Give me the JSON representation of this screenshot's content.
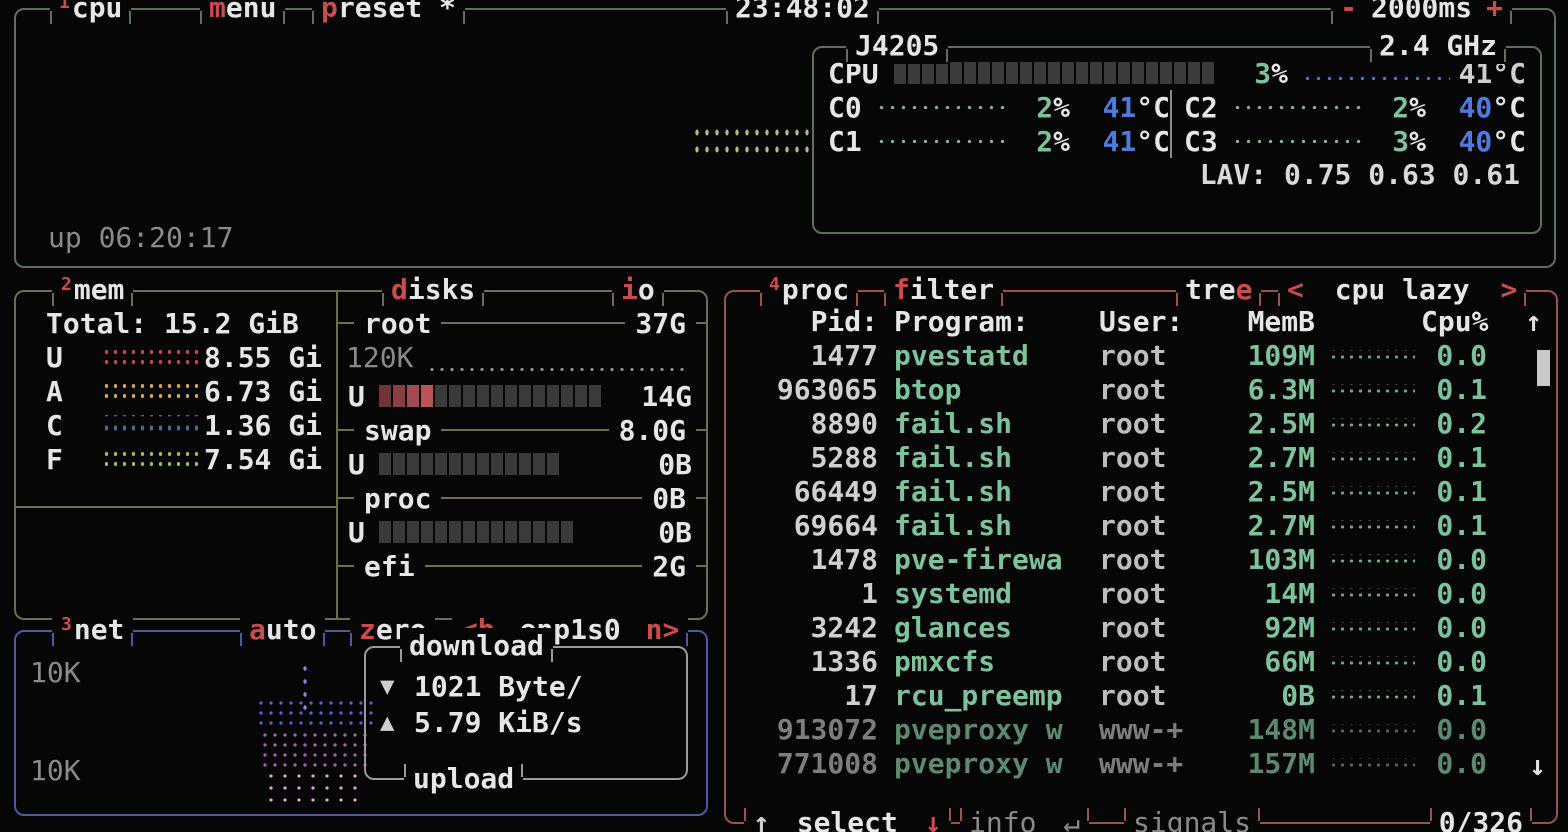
{
  "cpu_box": {
    "num": "1",
    "title": "cpu",
    "menu_hot": "m",
    "menu_rest": "enu",
    "preset_hot": "p",
    "preset_rest": "reset *",
    "clock": "23:48:02",
    "poll_minus": "-",
    "poll_interval": "2000ms",
    "poll_plus": "+",
    "model": "J4205",
    "max_freq": "2.4 GHz",
    "uptime": "up 06:20:17",
    "graph_color": "#b4bf76",
    "total": {
      "label": "CPU",
      "pct": "3",
      "pct_unit": "%",
      "temp": "41°C",
      "temp_graph_color": "#4d7be0",
      "meter": {
        "total": 23,
        "fill": 0
      }
    },
    "cores": [
      {
        "name": "C0",
        "pct": "2",
        "pct_unit": "%",
        "temp": "41",
        "temp_unit": "°C",
        "graph_color": "#7fbf97"
      },
      {
        "name": "C1",
        "pct": "2",
        "pct_unit": "%",
        "temp": "41",
        "temp_unit": "°C",
        "graph_color": "#7fbf97"
      },
      {
        "name": "C2",
        "pct": "2",
        "pct_unit": "%",
        "temp": "40",
        "temp_unit": "°C",
        "graph_color": "#7fbf97"
      },
      {
        "name": "C3",
        "pct": "3",
        "pct_unit": "%",
        "temp": "40",
        "temp_unit": "°C",
        "graph_color": "#7fbf97"
      }
    ],
    "lav_label": "LAV:",
    "lav_values": "0.75 0.63 0.61"
  },
  "mem_box": {
    "num": "2",
    "title": "mem",
    "total": "Total: 15.2 GiB",
    "rows": [
      {
        "key": "U",
        "value": "8.55 Gi",
        "dot_color": "#c14b50"
      },
      {
        "key": "A",
        "value": "6.73 Gi",
        "dot_color": "#d8a73e"
      },
      {
        "key": "C",
        "value": "1.36 Gi",
        "dot_color": "#49688f"
      },
      {
        "key": "F",
        "value": "7.54 Gi",
        "dot_color": "#97c24e"
      }
    ]
  },
  "disks_box": {
    "title_hot": "d",
    "title_rest": "isks",
    "io_hot": "i",
    "io_rest": "o",
    "sections": [
      {
        "name": "root",
        "size": "37G",
        "io_value": "120K",
        "used_label": "U",
        "used_value": "14G",
        "meter": {
          "total": 16,
          "fill": 4,
          "fill_colors": [
            "#6e3537",
            "#8c3f42",
            "#a34a4e",
            "#b85457"
          ]
        }
      },
      {
        "name": "swap",
        "size": "8.0G",
        "used_label": "U",
        "used_value": "0B",
        "meter": {
          "total": 13,
          "fill": 0
        }
      },
      {
        "name": "proc",
        "size": "0B",
        "used_label": "U",
        "used_value": "0B",
        "meter": {
          "total": 14,
          "fill": 0
        }
      },
      {
        "name": "efi",
        "size": "2G"
      }
    ]
  },
  "net_box": {
    "num": "3",
    "title": "net",
    "auto_hot": "a",
    "auto_rest": "uto",
    "zero_hot": "z",
    "zero_rest": "ero",
    "iface_prev": "<b",
    "iface": "enp1s0",
    "iface_next": "n>",
    "scale_top": "10K",
    "scale_bottom": "10K",
    "download_label": "download",
    "upload_label": "upload",
    "down_icon": "▼",
    "down_value": "1021 Byte/",
    "up_icon": "▲",
    "up_value": "5.79 KiB/s",
    "down_graph_color": "#5c5ccc",
    "mid_graph_color": "#a05fb0",
    "up_graph_color": "#d9a3dc",
    "spike_color": "#8787d8"
  },
  "proc_box": {
    "num": "4",
    "title": "proc",
    "filter_hot": "f",
    "filter_rest": "ilter",
    "tree_rest": "tre",
    "tree_hot": "e",
    "sort_prev": "<",
    "sort_label": "cpu lazy",
    "sort_next": ">",
    "columns": {
      "pid": "Pid:",
      "program": "Program:",
      "user": "User:",
      "mem": "MemB",
      "cpu": "Cpu%"
    },
    "scroll_up": "↑",
    "scroll_down": "↓",
    "rows": [
      {
        "pid": "1477",
        "program": "pvestatd",
        "user": "root",
        "mem": "109M",
        "cpu": "0.0",
        "dim": false
      },
      {
        "pid": "963065",
        "program": "btop",
        "user": "root",
        "mem": "6.3M",
        "cpu": "0.1",
        "dim": false
      },
      {
        "pid": "8890",
        "program": "fail.sh",
        "user": "root",
        "mem": "2.5M",
        "cpu": "0.2",
        "dim": false
      },
      {
        "pid": "5288",
        "program": "fail.sh",
        "user": "root",
        "mem": "2.7M",
        "cpu": "0.1",
        "dim": false
      },
      {
        "pid": "66449",
        "program": "fail.sh",
        "user": "root",
        "mem": "2.5M",
        "cpu": "0.1",
        "dim": false
      },
      {
        "pid": "69664",
        "program": "fail.sh",
        "user": "root",
        "mem": "2.7M",
        "cpu": "0.1",
        "dim": false
      },
      {
        "pid": "1478",
        "program": "pve-firewa",
        "user": "root",
        "mem": "103M",
        "cpu": "0.0",
        "dim": false
      },
      {
        "pid": "1",
        "program": "systemd",
        "user": "root",
        "mem": "14M",
        "cpu": "0.0",
        "dim": false
      },
      {
        "pid": "3242",
        "program": "glances",
        "user": "root",
        "mem": "92M",
        "cpu": "0.0",
        "dim": false
      },
      {
        "pid": "1336",
        "program": "pmxcfs",
        "user": "root",
        "mem": "66M",
        "cpu": "0.0",
        "dim": false
      },
      {
        "pid": "17",
        "program": "rcu_preemp",
        "user": "root",
        "mem": "0B",
        "cpu": "0.1",
        "dim": false
      },
      {
        "pid": "913072",
        "program": "pveproxy w",
        "user": "www-+",
        "mem": "148M",
        "cpu": "0.0",
        "dim": true
      },
      {
        "pid": "771008",
        "program": "pveproxy w",
        "user": "www-+",
        "mem": "157M",
        "cpu": "0.0",
        "dim": true
      }
    ],
    "footer": {
      "up_arrow": "↑",
      "select_label": "select",
      "down_arrow": "↓",
      "info_label": "info",
      "info_key": "↵",
      "signals_label": "signals",
      "selection": "0/326"
    }
  },
  "colors": {
    "background": "#060606",
    "foreground": "#e6e6e6",
    "dim_text": "#8a8a8a",
    "accent_red": "#cc4b4b",
    "value_green": "#7cc29c",
    "temp_blue": "#4d7be0",
    "cpu_border": "#5f6f5f",
    "mem_border": "#6e6e48",
    "net_border": "#5656a6",
    "proc_border": "#9a5151",
    "meter_empty": "#3a3a3a",
    "inner_box_border": "#9a9a9a",
    "scrollbar": "#c8c8c8"
  }
}
